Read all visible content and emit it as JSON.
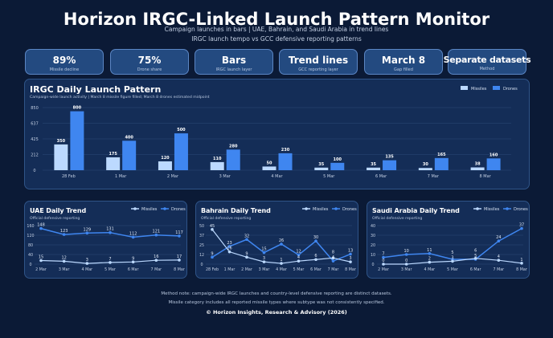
{
  "header": {
    "title": "Horizon IRGC-Linked Launch Pattern Monitor",
    "subtitle1": "Campaign launches in bars | UAE, Bahrain, and Saudi Arabia in trend lines",
    "subtitle2": "IRGC launch tempo vs GCC defensive reporting patterns"
  },
  "kpis": [
    {
      "value": "89%",
      "label": "Missile decline"
    },
    {
      "value": "75%",
      "label": "Drone share"
    },
    {
      "value": "Bars",
      "label": "IRGC launch layer"
    },
    {
      "value": "Trend lines",
      "label": "GCC reporting layer"
    },
    {
      "value": "March 8",
      "label": "Gap filled"
    },
    {
      "value": "Separate datasets",
      "label": "Method"
    }
  ],
  "colors": {
    "missiles": "#bcd9ff",
    "drones": "#3f86f0"
  },
  "chart_data": [
    {
      "type": "bar",
      "title": "IRGC Daily Launch Pattern",
      "subtitle": "Campaign-wide launch activity | March 8 missile figure filled; March 8 drones estimated midpoint",
      "categories": [
        "28 Feb",
        "1 Mar",
        "2 Mar",
        "3 Mar",
        "4 Mar",
        "5 Mar",
        "6 Mar",
        "7 Mar",
        "8 Mar"
      ],
      "yticks": [
        "0",
        "212",
        "425",
        "637",
        "850"
      ],
      "ylim": [
        0,
        850
      ],
      "legend": "top-right",
      "series": [
        {
          "name": "Missiles",
          "values": [
            350,
            175,
            120,
            110,
            50,
            35,
            35,
            30,
            38
          ]
        },
        {
          "name": "Drones",
          "values": [
            800,
            400,
            500,
            280,
            230,
            100,
            135,
            165,
            160
          ]
        }
      ]
    },
    {
      "type": "line",
      "title": "UAE Daily Trend",
      "subtitle": "Official defensive reporting",
      "categories": [
        "2 Mar",
        "3 Mar",
        "4 Mar",
        "5 Mar",
        "6 Mar",
        "7 Mar",
        "8 Mar"
      ],
      "yticks": [
        "0",
        "40",
        "80",
        "120",
        "160"
      ],
      "ylim": [
        0,
        160
      ],
      "legend": "top-right",
      "series": [
        {
          "name": "Missiles",
          "values": [
            15,
            12,
            3,
            7,
            9,
            16,
            17
          ]
        },
        {
          "name": "Drones",
          "values": [
            148,
            123,
            129,
            131,
            112,
            121,
            117
          ]
        }
      ]
    },
    {
      "type": "line",
      "title": "Bahrain Daily Trend",
      "subtitle": "Official defensive reporting",
      "categories": [
        "28 Feb",
        "1 Mar",
        "2 Mar",
        "3 Mar",
        "4 Mar",
        "5 Mar",
        "6 Mar",
        "7 Mar",
        "8 Mar"
      ],
      "yticks": [
        "0",
        "12",
        "25",
        "37",
        "50"
      ],
      "ylim": [
        0,
        50
      ],
      "legend": "top-right",
      "series": [
        {
          "name": "Missiles",
          "values": [
            45,
            16,
            9,
            3,
            1,
            4,
            6,
            8,
            3
          ]
        },
        {
          "name": "Drones",
          "values": [
            9,
            23,
            32,
            15,
            26,
            12,
            30,
            4,
            13
          ]
        }
      ]
    },
    {
      "type": "line",
      "title": "Saudi Arabia Daily Trend",
      "subtitle": "Official defensive reporting",
      "categories": [
        "2 Mar",
        "3 Mar",
        "4 Mar",
        "5 Mar",
        "6 Mar",
        "7 Mar",
        "8 Mar"
      ],
      "yticks": [
        "0",
        "10",
        "20",
        "30",
        "40"
      ],
      "ylim": [
        0,
        40
      ],
      "legend": "top-right",
      "series": [
        {
          "name": "Missiles",
          "values": [
            0,
            0,
            2,
            3,
            6,
            4,
            1
          ]
        },
        {
          "name": "Drones",
          "values": [
            7,
            10,
            11,
            5,
            5,
            24,
            37
          ]
        }
      ]
    }
  ],
  "footer": {
    "note1": "Method note: campaign-wide IRGC launches and country-level defensive reporting are distinct datasets.",
    "note2": "Missile category includes all reported missile types where subtype was not consistently specified.",
    "copyright": "© Horizon Insights, Research & Advisory (2026)"
  }
}
